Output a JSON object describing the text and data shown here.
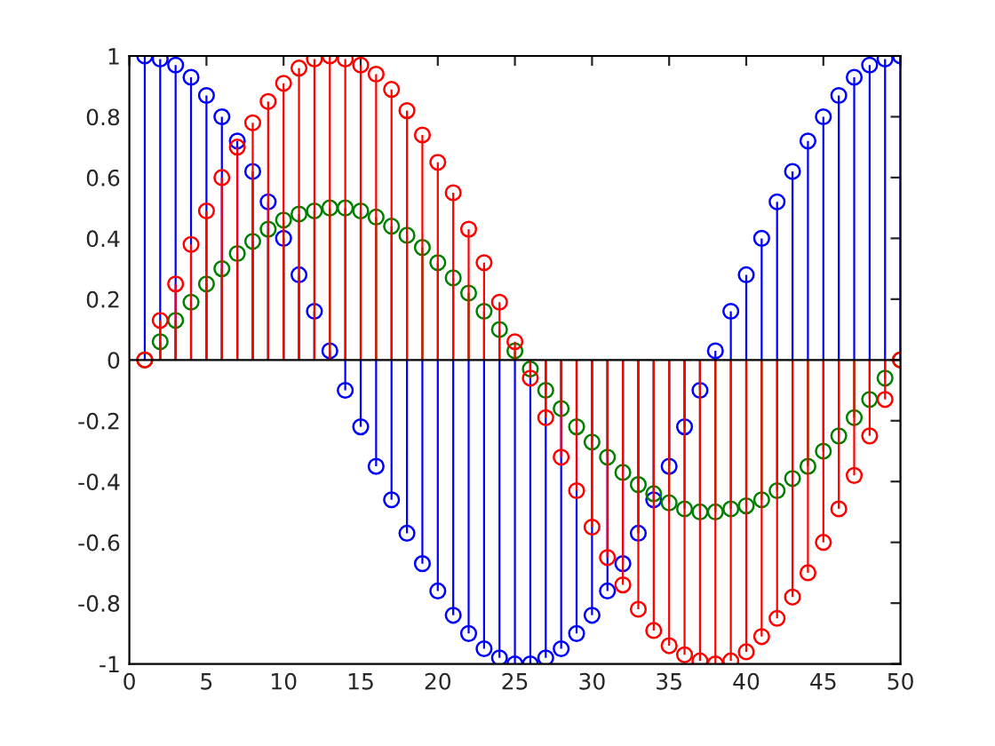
{
  "chart_data": {
    "type": "lollipop",
    "marker": "circle",
    "grid": false,
    "ref_lines": [
      {
        "axis": "y",
        "value": 0,
        "color": "#000000"
      }
    ],
    "x": [
      1,
      2,
      3,
      4,
      5,
      6,
      7,
      8,
      9,
      10,
      11,
      12,
      13,
      14,
      15,
      16,
      17,
      18,
      19,
      20,
      21,
      22,
      23,
      24,
      25,
      26,
      27,
      28,
      29,
      30,
      31,
      32,
      33,
      34,
      35,
      36,
      37,
      38,
      39,
      40,
      41,
      42,
      43,
      44,
      45,
      46,
      47,
      48,
      49,
      50
    ],
    "xlim": [
      0,
      50
    ],
    "xticks": [
      0,
      5,
      10,
      15,
      20,
      25,
      30,
      35,
      40,
      45,
      50
    ],
    "ylim": [
      -1,
      1
    ],
    "yticks": [
      -1,
      -0.8,
      -0.6,
      -0.4,
      -0.2,
      0,
      0.2,
      0.4,
      0.6,
      0.8,
      1
    ],
    "series": [
      {
        "color": "#0000ff",
        "values": [
          1,
          0.99,
          0.97,
          0.93,
          0.87,
          0.8,
          0.72,
          0.62,
          0.52,
          0.4,
          0.28,
          0.16,
          0.03,
          -0.1,
          -0.22,
          -0.35,
          -0.46,
          -0.57,
          -0.67,
          -0.76,
          -0.84,
          -0.9,
          -0.95,
          -0.98,
          -1,
          -1,
          -0.98,
          -0.95,
          -0.9,
          -0.84,
          -0.76,
          -0.67,
          -0.57,
          -0.46,
          -0.35,
          -0.22,
          -0.1,
          0.03,
          0.16,
          0.28,
          0.4,
          0.52,
          0.62,
          0.72,
          0.8,
          0.87,
          0.93,
          0.97,
          0.99,
          1
        ]
      },
      {
        "color": "#008000",
        "values": [
          0,
          0.06,
          0.13,
          0.19,
          0.25,
          0.3,
          0.35,
          0.39,
          0.43,
          0.46,
          0.48,
          0.49,
          0.5,
          0.5,
          0.49,
          0.47,
          0.44,
          0.41,
          0.37,
          0.32,
          0.27,
          0.22,
          0.16,
          0.1,
          0.03,
          -0.03,
          -0.1,
          -0.16,
          -0.22,
          -0.27,
          -0.32,
          -0.37,
          -0.41,
          -0.44,
          -0.47,
          -0.49,
          -0.5,
          -0.5,
          -0.49,
          -0.48,
          -0.46,
          -0.43,
          -0.39,
          -0.35,
          -0.3,
          -0.25,
          -0.19,
          -0.13,
          -0.06,
          0
        ]
      },
      {
        "color": "#ff0000",
        "values": [
          0,
          0.13,
          0.25,
          0.38,
          0.49,
          0.6,
          0.7,
          0.78,
          0.85,
          0.91,
          0.96,
          0.99,
          1,
          0.99,
          0.97,
          0.94,
          0.89,
          0.82,
          0.74,
          0.65,
          0.55,
          0.43,
          0.32,
          0.19,
          0.06,
          -0.06,
          -0.19,
          -0.32,
          -0.43,
          -0.55,
          -0.65,
          -0.74,
          -0.82,
          -0.89,
          -0.94,
          -0.97,
          -0.99,
          -1,
          -0.99,
          -0.96,
          -0.91,
          -0.85,
          -0.78,
          -0.7,
          -0.6,
          -0.49,
          -0.38,
          -0.25,
          -0.13,
          0
        ]
      }
    ]
  }
}
